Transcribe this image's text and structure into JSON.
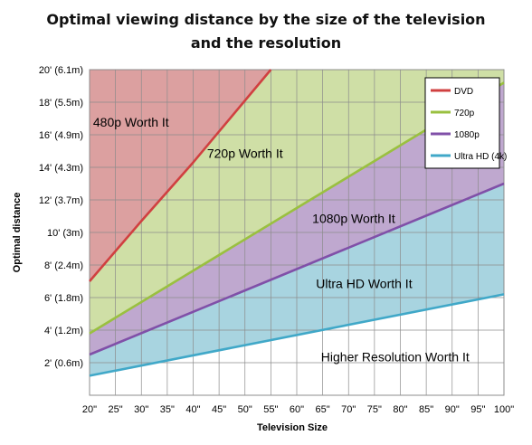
{
  "chart_data": {
    "type": "area",
    "title": "Optimal viewing distance by the size of the television",
    "title_line2": "and the resolution",
    "xlabel": "Television Size",
    "ylabel": "Optimal distance",
    "x": [
      20,
      25,
      30,
      35,
      40,
      45,
      50,
      55,
      60,
      65,
      70,
      75,
      80,
      85,
      90,
      95,
      100
    ],
    "x_tick_labels": [
      "20\"",
      "25\"",
      "30\"",
      "35\"",
      "40\"",
      "45\"",
      "50\"",
      "55\"",
      "60\"",
      "65\"",
      "70\"",
      "75\"",
      "80\"",
      "85\"",
      "90\"",
      "95\"",
      "100\""
    ],
    "xlim": [
      20,
      100
    ],
    "y_unit": "feet",
    "ylim": [
      0,
      20
    ],
    "y_ticks": [
      2,
      4,
      6,
      8,
      10,
      12,
      14,
      16,
      18,
      20
    ],
    "y_tick_labels": [
      "2' (0.6m)",
      "4' (1.2m)",
      "6' (1.8m)",
      "8' (2.4m)",
      "10' (3m)",
      "12' (3.7m)",
      "14' (4.3m)",
      "16' (4.9m)",
      "18' (5.5m)",
      "20' (6.1m)"
    ],
    "grid": true,
    "legend_position": "top-right",
    "series": [
      {
        "name": "DVD",
        "color": "#d04040",
        "points": [
          [
            20,
            7.0
          ],
          [
            30,
            10.7
          ],
          [
            40,
            14.3
          ],
          [
            55,
            20.0
          ]
        ],
        "fill": "#dca0a0"
      },
      {
        "name": "720p",
        "color": "#9ac040",
        "points": [
          [
            20,
            3.8
          ],
          [
            100,
            19.2
          ]
        ],
        "fill": "#cfdfa6"
      },
      {
        "name": "1080p",
        "color": "#8050a8",
        "points": [
          [
            20,
            2.5
          ],
          [
            100,
            13.0
          ]
        ],
        "fill": "#bfa8cf"
      },
      {
        "name": "Ultra HD (4k)",
        "color": "#40a8c8",
        "points": [
          [
            20,
            1.2
          ],
          [
            100,
            6.2
          ]
        ],
        "fill": "#a8d4e0"
      }
    ],
    "regions": [
      {
        "label": "480p Worth It",
        "at": [
          28,
          16.7
        ]
      },
      {
        "label": "720p Worth It",
        "at": [
          50,
          14.8
        ]
      },
      {
        "label": "1080p Worth It",
        "at": [
          71,
          10.8
        ]
      },
      {
        "label": "Ultra HD Worth It",
        "at": [
          73,
          6.8
        ]
      },
      {
        "label": "Higher Resolution Worth It",
        "at": [
          79,
          2.3
        ]
      }
    ]
  }
}
